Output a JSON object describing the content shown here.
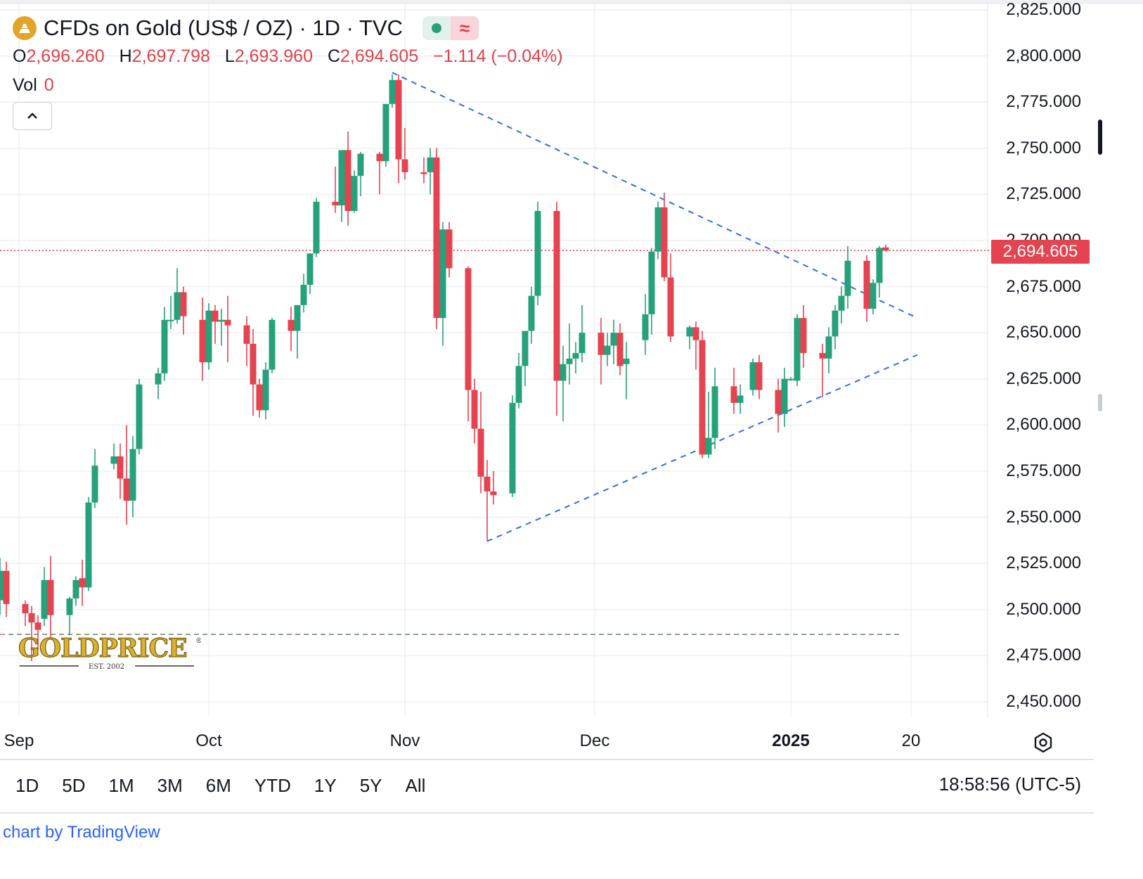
{
  "header": {
    "title": "CFDs on Gold (US$ / OZ) · 1D · TVC",
    "ohlc": [
      {
        "label": "O",
        "value": "2,696.260"
      },
      {
        "label": "H",
        "value": "2,697.798"
      },
      {
        "label": "L",
        "value": "2,693.960"
      },
      {
        "label": "C",
        "value": "2,694.605"
      }
    ],
    "change": "−1.114 (−0.04%)",
    "vol_label": "Vol",
    "vol_value": "0"
  },
  "colors": {
    "up": "#26a17b",
    "down": "#e4434f",
    "trendline": "#2f6fe4",
    "accent": "#e0a428"
  },
  "icons": {
    "symbol": "gold-bars-icon",
    "collapse": "chevron-up-icon",
    "settings": "settings-icon"
  },
  "watermark": {
    "brand": "GOLDPRICE",
    "est": "EST. 2002"
  },
  "price_tag": "2,694.605",
  "time_ranges": [
    "1D",
    "5D",
    "1M",
    "3M",
    "6M",
    "YTD",
    "1Y",
    "5Y",
    "All"
  ],
  "clock": "18:58:56 (UTC-5)",
  "attribution": "chart by TradingView",
  "chart_data": {
    "type": "candlestick",
    "title": "CFDs on Gold (US$ / OZ) · 1D · TVC",
    "y_ticks": [
      "2,450.000",
      "2,475.000",
      "2,500.000",
      "2,525.000",
      "2,550.000",
      "2,575.000",
      "2,600.000",
      "2,625.000",
      "2,650.000",
      "2,675.000",
      "2,700.000",
      "2,725.000",
      "2,750.000",
      "2,775.000",
      "2,800.000",
      "2,825.000"
    ],
    "x_ticks": [
      {
        "label": "Sep",
        "date": "2024-09-01"
      },
      {
        "label": "Oct",
        "date": "2024-10-01"
      },
      {
        "label": "Nov",
        "date": "2024-11-01"
      },
      {
        "label": "Dec",
        "date": "2024-12-01"
      },
      {
        "label": "2025",
        "date": "2025-01-01",
        "bold": true
      },
      {
        "label": "20",
        "date": "2025-01-20"
      }
    ],
    "ylim": [
      2440,
      2826
    ],
    "last_price": 2694.605,
    "grid": true,
    "candles": [
      {
        "d": "2024-08-29",
        "o": 2505,
        "h": 2528,
        "l": 2497,
        "c": 2521
      },
      {
        "d": "2024-08-30",
        "o": 2521,
        "h": 2526,
        "l": 2496,
        "c": 2503
      },
      {
        "d": "2024-09-02",
        "o": 2503,
        "h": 2505,
        "l": 2491,
        "c": 2498
      },
      {
        "d": "2024-09-03",
        "o": 2498,
        "h": 2502,
        "l": 2472,
        "c": 2493
      },
      {
        "d": "2024-09-04",
        "o": 2493,
        "h": 2497,
        "l": 2478,
        "c": 2489
      },
      {
        "d": "2024-09-05",
        "o": 2495,
        "h": 2523,
        "l": 2491,
        "c": 2516
      },
      {
        "d": "2024-09-06",
        "o": 2516,
        "h": 2529,
        "l": 2485,
        "c": 2497
      },
      {
        "d": "2024-09-09",
        "o": 2497,
        "h": 2507,
        "l": 2486,
        "c": 2506
      },
      {
        "d": "2024-09-10",
        "o": 2506,
        "h": 2518,
        "l": 2502,
        "c": 2516
      },
      {
        "d": "2024-09-11",
        "o": 2517,
        "h": 2527,
        "l": 2502,
        "c": 2512
      },
      {
        "d": "2024-09-12",
        "o": 2512,
        "h": 2561,
        "l": 2510,
        "c": 2558
      },
      {
        "d": "2024-09-13",
        "o": 2558,
        "h": 2587,
        "l": 2555,
        "c": 2578
      },
      {
        "d": "2024-09-16",
        "o": 2579,
        "h": 2590,
        "l": 2576,
        "c": 2583
      },
      {
        "d": "2024-09-17",
        "o": 2583,
        "h": 2590,
        "l": 2560,
        "c": 2571
      },
      {
        "d": "2024-09-18",
        "o": 2571,
        "h": 2600,
        "l": 2546,
        "c": 2559
      },
      {
        "d": "2024-09-19",
        "o": 2559,
        "h": 2594,
        "l": 2550,
        "c": 2587
      },
      {
        "d": "2024-09-20",
        "o": 2587,
        "h": 2625,
        "l": 2584,
        "c": 2622
      },
      {
        "d": "2024-09-23",
        "o": 2622,
        "h": 2631,
        "l": 2614,
        "c": 2628
      },
      {
        "d": "2024-09-24",
        "o": 2628,
        "h": 2664,
        "l": 2624,
        "c": 2657
      },
      {
        "d": "2024-09-25",
        "o": 2657,
        "h": 2670,
        "l": 2652,
        "c": 2657
      },
      {
        "d": "2024-09-26",
        "o": 2657,
        "h": 2685,
        "l": 2655,
        "c": 2672
      },
      {
        "d": "2024-09-27",
        "o": 2672,
        "h": 2675,
        "l": 2649,
        "c": 2659
      },
      {
        "d": "2024-09-30",
        "o": 2657,
        "h": 2669,
        "l": 2624,
        "c": 2634
      },
      {
        "d": "2024-10-01",
        "o": 2634,
        "h": 2666,
        "l": 2630,
        "c": 2662
      },
      {
        "d": "2024-10-02",
        "o": 2662,
        "h": 2665,
        "l": 2644,
        "c": 2656
      },
      {
        "d": "2024-10-03",
        "o": 2656,
        "h": 2663,
        "l": 2643,
        "c": 2657
      },
      {
        "d": "2024-10-04",
        "o": 2657,
        "h": 2670,
        "l": 2634,
        "c": 2654
      },
      {
        "d": "2024-10-07",
        "o": 2654,
        "h": 2659,
        "l": 2632,
        "c": 2644
      },
      {
        "d": "2024-10-08",
        "o": 2644,
        "h": 2652,
        "l": 2605,
        "c": 2622
      },
      {
        "d": "2024-10-09",
        "o": 2622,
        "h": 2625,
        "l": 2604,
        "c": 2608
      },
      {
        "d": "2024-10-10",
        "o": 2608,
        "h": 2634,
        "l": 2603,
        "c": 2630
      },
      {
        "d": "2024-10-11",
        "o": 2630,
        "h": 2658,
        "l": 2628,
        "c": 2657
      },
      {
        "d": "2024-10-14",
        "o": 2657,
        "h": 2664,
        "l": 2640,
        "c": 2651
      },
      {
        "d": "2024-10-15",
        "o": 2651,
        "h": 2665,
        "l": 2636,
        "c": 2665
      },
      {
        "d": "2024-10-16",
        "o": 2665,
        "h": 2682,
        "l": 2661,
        "c": 2676
      },
      {
        "d": "2024-10-17",
        "o": 2676,
        "h": 2690,
        "l": 2671,
        "c": 2693
      },
      {
        "d": "2024-10-18",
        "o": 2693,
        "h": 2723,
        "l": 2691,
        "c": 2721
      },
      {
        "d": "2024-10-21",
        "o": 2721,
        "h": 2740,
        "l": 2715,
        "c": 2719
      },
      {
        "d": "2024-10-22",
        "o": 2719,
        "h": 2749,
        "l": 2710,
        "c": 2749
      },
      {
        "d": "2024-10-23",
        "o": 2749,
        "h": 2759,
        "l": 2708,
        "c": 2716
      },
      {
        "d": "2024-10-24",
        "o": 2716,
        "h": 2738,
        "l": 2715,
        "c": 2735
      },
      {
        "d": "2024-10-25",
        "o": 2735,
        "h": 2748,
        "l": 2724,
        "c": 2747
      },
      {
        "d": "2024-10-28",
        "o": 2747,
        "h": 2748,
        "l": 2725,
        "c": 2743
      },
      {
        "d": "2024-10-29",
        "o": 2743,
        "h": 2774,
        "l": 2740,
        "c": 2774
      },
      {
        "d": "2024-10-30",
        "o": 2774,
        "h": 2790,
        "l": 2772,
        "c": 2787
      },
      {
        "d": "2024-10-31",
        "o": 2787,
        "h": 2790,
        "l": 2731,
        "c": 2744
      },
      {
        "d": "2024-11-01",
        "o": 2744,
        "h": 2761,
        "l": 2733,
        "c": 2737
      },
      {
        "d": "2024-11-04",
        "o": 2737,
        "h": 2745,
        "l": 2731,
        "c": 2736
      },
      {
        "d": "2024-11-05",
        "o": 2737,
        "h": 2750,
        "l": 2725,
        "c": 2745
      },
      {
        "d": "2024-11-06",
        "o": 2745,
        "h": 2750,
        "l": 2652,
        "c": 2658
      },
      {
        "d": "2024-11-07",
        "o": 2658,
        "h": 2710,
        "l": 2643,
        "c": 2706
      },
      {
        "d": "2024-11-08",
        "o": 2706,
        "h": 2710,
        "l": 2680,
        "c": 2685
      },
      {
        "d": "2024-11-11",
        "o": 2685,
        "h": 2686,
        "l": 2602,
        "c": 2619
      },
      {
        "d": "2024-11-12",
        "o": 2619,
        "h": 2625,
        "l": 2590,
        "c": 2598
      },
      {
        "d": "2024-11-13",
        "o": 2598,
        "h": 2618,
        "l": 2563,
        "c": 2572
      },
      {
        "d": "2024-11-14",
        "o": 2572,
        "h": 2581,
        "l": 2537,
        "c": 2564
      },
      {
        "d": "2024-11-15",
        "o": 2564,
        "h": 2575,
        "l": 2557,
        "c": 2562
      },
      {
        "d": "2024-11-18",
        "o": 2563,
        "h": 2616,
        "l": 2561,
        "c": 2612
      },
      {
        "d": "2024-11-19",
        "o": 2612,
        "h": 2639,
        "l": 2609,
        "c": 2632
      },
      {
        "d": "2024-11-20",
        "o": 2632,
        "h": 2650,
        "l": 2621,
        "c": 2651
      },
      {
        "d": "2024-11-21",
        "o": 2651,
        "h": 2675,
        "l": 2644,
        "c": 2670
      },
      {
        "d": "2024-11-22",
        "o": 2670,
        "h": 2721,
        "l": 2665,
        "c": 2716
      },
      {
        "d": "2024-11-25",
        "o": 2716,
        "h": 2721,
        "l": 2605,
        "c": 2624
      },
      {
        "d": "2024-11-26",
        "o": 2624,
        "h": 2643,
        "l": 2602,
        "c": 2633
      },
      {
        "d": "2024-11-27",
        "o": 2633,
        "h": 2655,
        "l": 2622,
        "c": 2636
      },
      {
        "d": "2024-11-28",
        "o": 2636,
        "h": 2645,
        "l": 2628,
        "c": 2639
      },
      {
        "d": "2024-11-29",
        "o": 2639,
        "h": 2665,
        "l": 2634,
        "c": 2650
      },
      {
        "d": "2024-12-02",
        "o": 2650,
        "h": 2658,
        "l": 2622,
        "c": 2638
      },
      {
        "d": "2024-12-03",
        "o": 2638,
        "h": 2650,
        "l": 2632,
        "c": 2643
      },
      {
        "d": "2024-12-04",
        "o": 2643,
        "h": 2657,
        "l": 2633,
        "c": 2650
      },
      {
        "d": "2024-12-05",
        "o": 2650,
        "h": 2655,
        "l": 2627,
        "c": 2632
      },
      {
        "d": "2024-12-06",
        "o": 2633,
        "h": 2645,
        "l": 2614,
        "c": 2636
      },
      {
        "d": "2024-12-09",
        "o": 2646,
        "h": 2671,
        "l": 2638,
        "c": 2660
      },
      {
        "d": "2024-12-10",
        "o": 2660,
        "h": 2696,
        "l": 2649,
        "c": 2694
      },
      {
        "d": "2024-12-11",
        "o": 2694,
        "h": 2721,
        "l": 2690,
        "c": 2718
      },
      {
        "d": "2024-12-12",
        "o": 2718,
        "h": 2726,
        "l": 2678,
        "c": 2680
      },
      {
        "d": "2024-12-13",
        "o": 2680,
        "h": 2693,
        "l": 2645,
        "c": 2648
      },
      {
        "d": "2024-12-16",
        "o": 2648,
        "h": 2654,
        "l": 2641,
        "c": 2653
      },
      {
        "d": "2024-12-17",
        "o": 2653,
        "h": 2656,
        "l": 2630,
        "c": 2646
      },
      {
        "d": "2024-12-18",
        "o": 2646,
        "h": 2651,
        "l": 2582,
        "c": 2584
      },
      {
        "d": "2024-12-19",
        "o": 2584,
        "h": 2618,
        "l": 2582,
        "c": 2593
      },
      {
        "d": "2024-12-20",
        "o": 2593,
        "h": 2631,
        "l": 2587,
        "c": 2621
      },
      {
        "d": "2024-12-23",
        "o": 2621,
        "h": 2631,
        "l": 2606,
        "c": 2612
      },
      {
        "d": "2024-12-24",
        "o": 2612,
        "h": 2622,
        "l": 2606,
        "c": 2616
      },
      {
        "d": "2024-12-26",
        "o": 2619,
        "h": 2636,
        "l": 2616,
        "c": 2634
      },
      {
        "d": "2024-12-27",
        "o": 2634,
        "h": 2638,
        "l": 2614,
        "c": 2619
      },
      {
        "d": "2024-12-30",
        "o": 2619,
        "h": 2625,
        "l": 2596,
        "c": 2606
      },
      {
        "d": "2024-12-31",
        "o": 2606,
        "h": 2631,
        "l": 2599,
        "c": 2625
      },
      {
        "d": "2025-01-01",
        "o": 2625,
        "h": 2626,
        "l": 2624,
        "c": 2625
      },
      {
        "d": "2025-01-02",
        "o": 2624,
        "h": 2660,
        "l": 2621,
        "c": 2658
      },
      {
        "d": "2025-01-03",
        "o": 2658,
        "h": 2665,
        "l": 2631,
        "c": 2639
      },
      {
        "d": "2025-01-06",
        "o": 2639,
        "h": 2644,
        "l": 2615,
        "c": 2636
      },
      {
        "d": "2025-01-07",
        "o": 2636,
        "h": 2653,
        "l": 2628,
        "c": 2648
      },
      {
        "d": "2025-01-08",
        "o": 2648,
        "h": 2665,
        "l": 2641,
        "c": 2662
      },
      {
        "d": "2025-01-09",
        "o": 2662,
        "h": 2675,
        "l": 2655,
        "c": 2670
      },
      {
        "d": "2025-01-10",
        "o": 2670,
        "h": 2697,
        "l": 2663,
        "c": 2689
      },
      {
        "d": "2025-01-13",
        "o": 2689,
        "h": 2692,
        "l": 2656,
        "c": 2663
      },
      {
        "d": "2025-01-14",
        "o": 2663,
        "h": 2679,
        "l": 2660,
        "c": 2677
      },
      {
        "d": "2025-01-15",
        "o": 2677,
        "h": 2697,
        "l": 2669,
        "c": 2696
      },
      {
        "d": "2025-01-16",
        "o": 2696.26,
        "h": 2697.798,
        "l": 2693.96,
        "c": 2694.605
      }
    ],
    "trendlines": [
      {
        "style": "dashed",
        "from": {
          "d": "2024-10-30",
          "p": 2791
        },
        "to": {
          "d": "2025-01-21",
          "p": 2658
        }
      },
      {
        "style": "dashed",
        "from": {
          "d": "2024-11-14",
          "p": 2537
        },
        "to": {
          "d": "2025-01-21",
          "p": 2638
        }
      }
    ]
  }
}
